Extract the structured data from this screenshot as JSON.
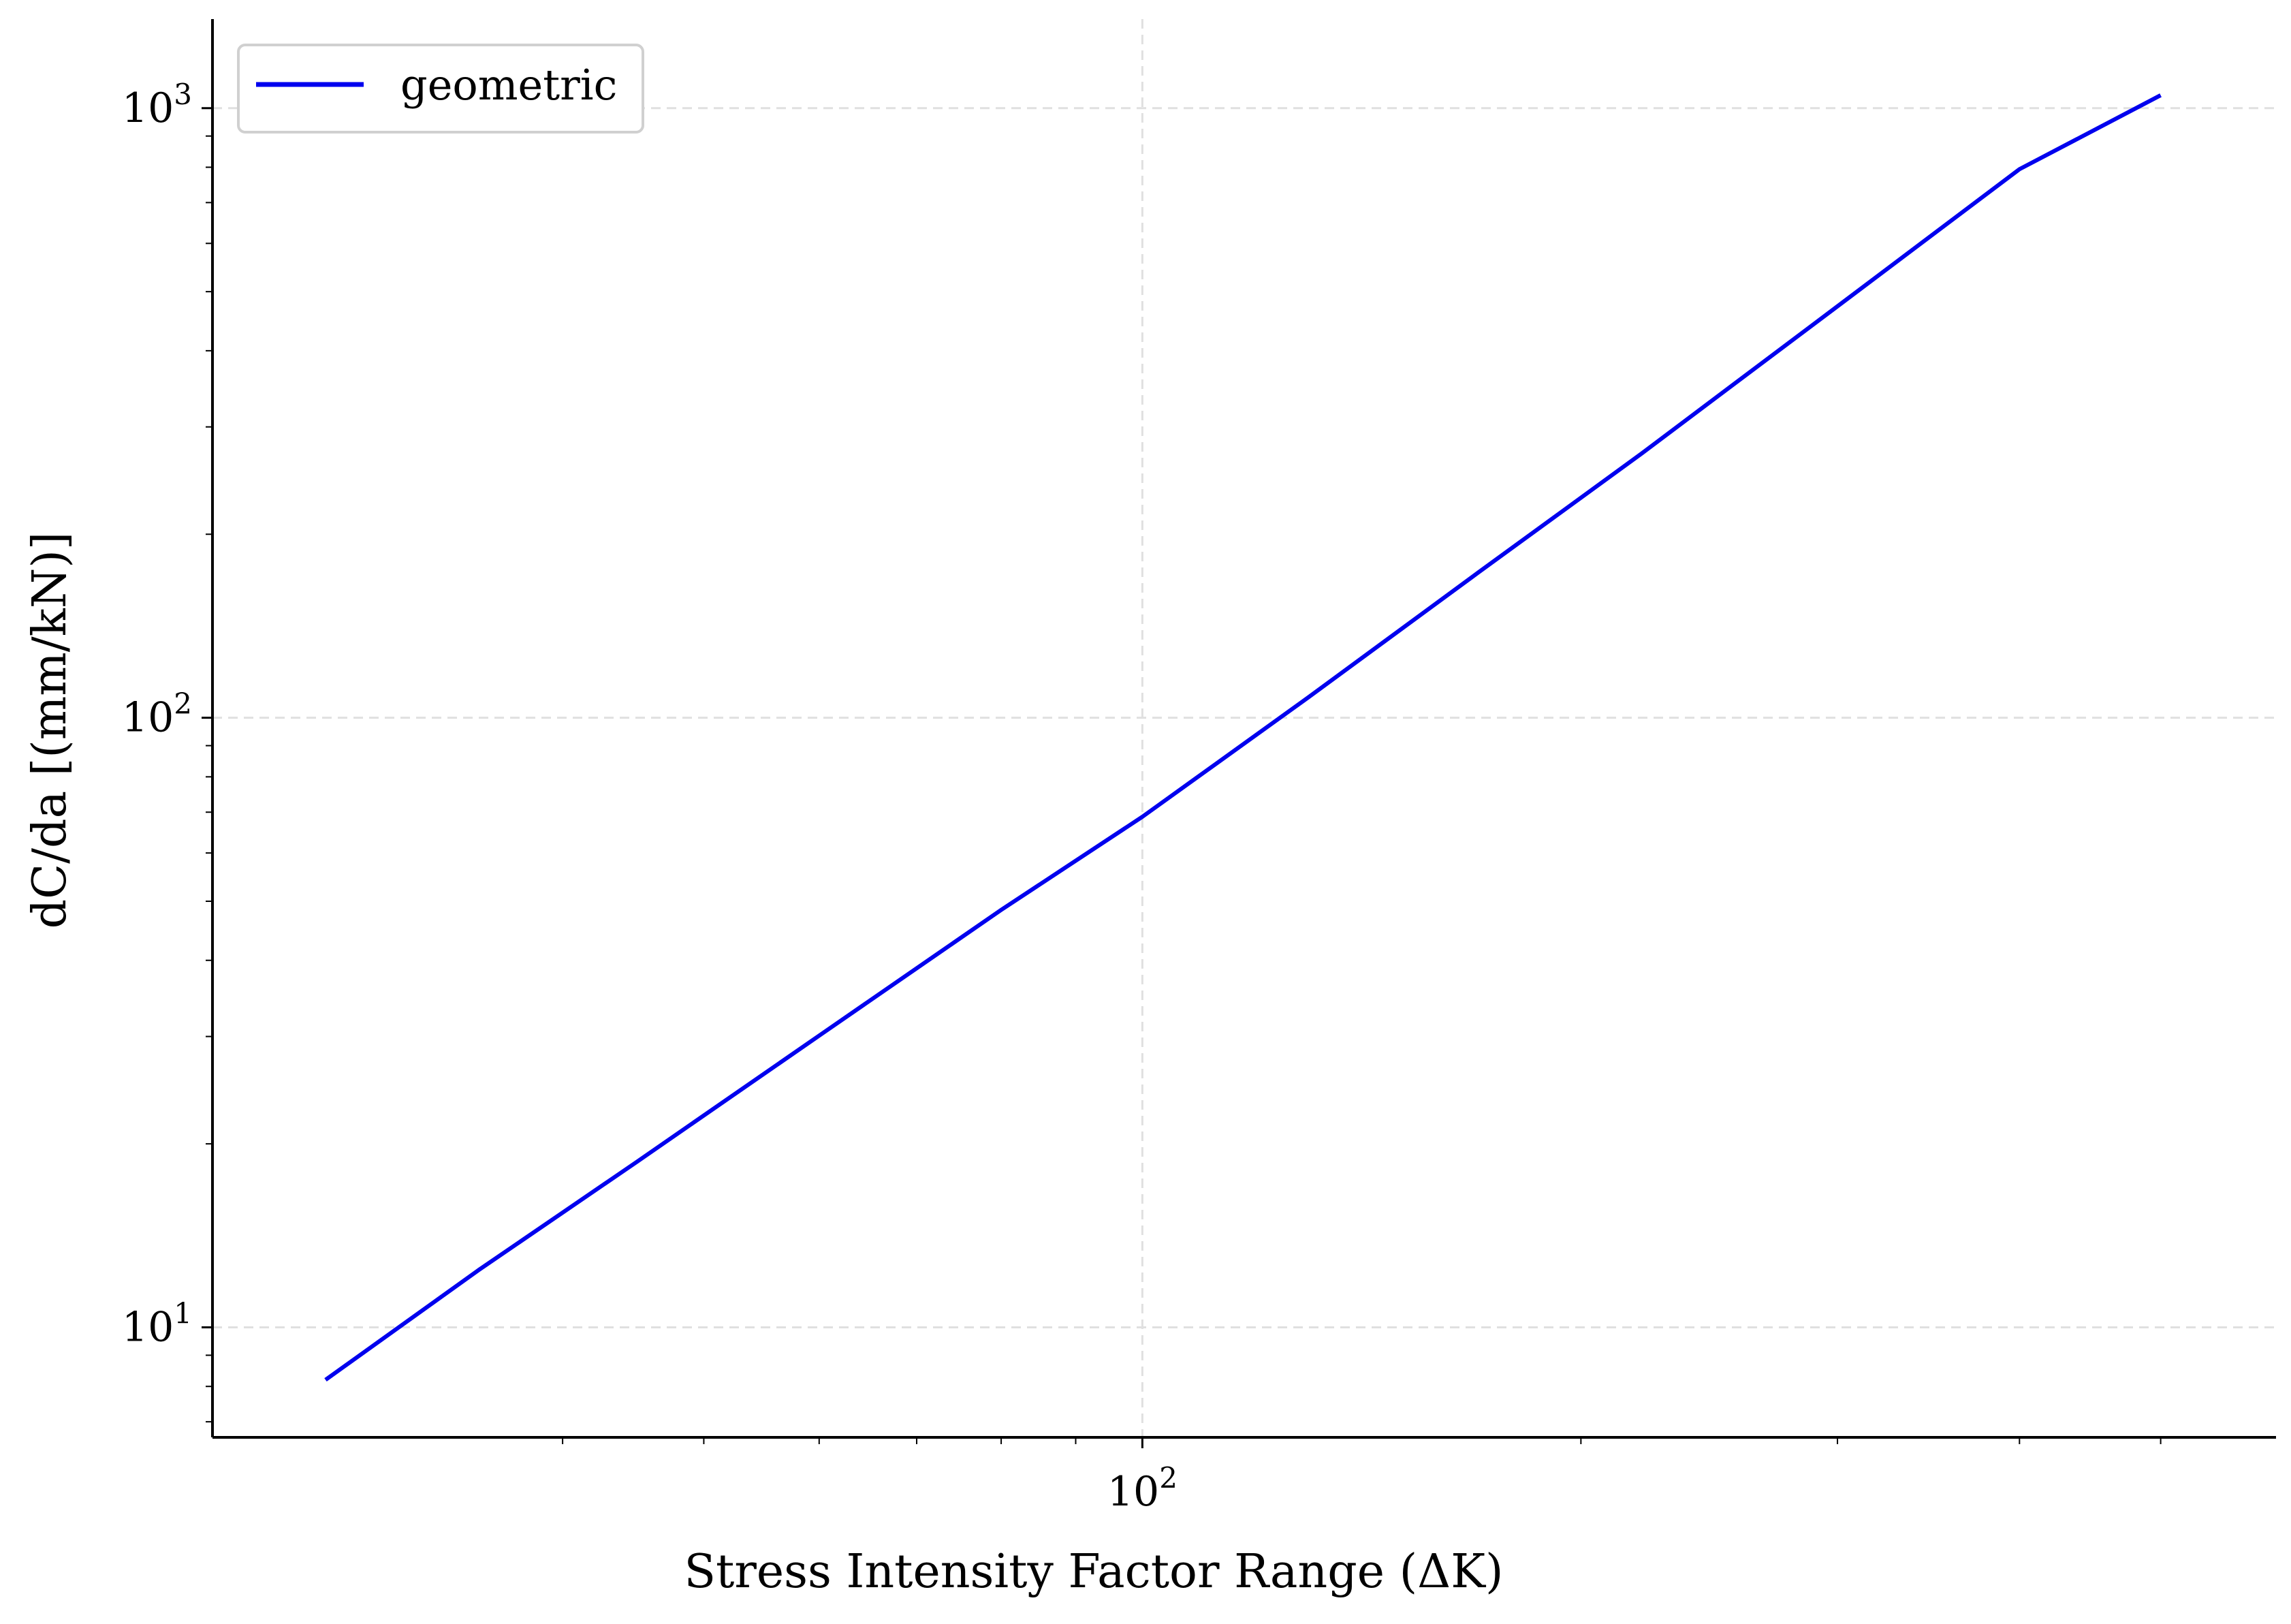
{
  "chart_data": {
    "type": "line",
    "title": "",
    "xlabel": "Stress Intensity Factor Range (ΔK)",
    "ylabel": "dC/da [(mm/kN)]",
    "x_scale": "log",
    "y_scale": "log",
    "xlim": [
      23,
      600
    ],
    "ylim": [
      6.6,
      1400
    ],
    "x_ticks": [
      {
        "value": 100,
        "base": "10",
        "exp": "2"
      }
    ],
    "y_ticks": [
      {
        "value": 10,
        "base": "10",
        "exp": "1"
      },
      {
        "value": 100,
        "base": "10",
        "exp": "2"
      },
      {
        "value": 1000,
        "base": "10",
        "exp": "3"
      }
    ],
    "x_minor_ticks": [
      40,
      50,
      60,
      70,
      80,
      90,
      200,
      300,
      400,
      500
    ],
    "y_minor_ticks": [
      7,
      8,
      9,
      20,
      30,
      40,
      50,
      60,
      70,
      80,
      90,
      200,
      300,
      400,
      500,
      600,
      700,
      800,
      900
    ],
    "grid": true,
    "legend_position": "top-left",
    "series": [
      {
        "name": "geometric",
        "color": "#0000ee",
        "x": [
          27.5,
          35,
          45,
          60,
          80,
          100,
          130,
          170,
          220,
          300,
          400,
          500
        ],
        "y": [
          8.2,
          12.4,
          18.7,
          30.1,
          48.4,
          68.8,
          108,
          173,
          271,
          473,
          794,
          1050
        ]
      }
    ]
  }
}
